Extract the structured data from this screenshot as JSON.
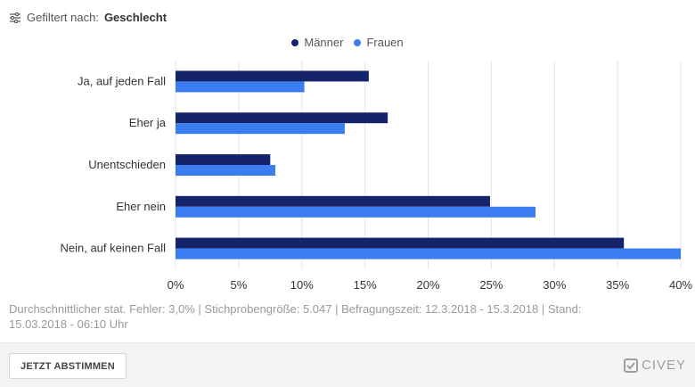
{
  "filter": {
    "prefix": "Gefiltert nach:",
    "value": "Geschlecht",
    "icon": "filter-sliders-icon"
  },
  "colors": {
    "maenner": "#15236b",
    "frauen": "#3b7cf0",
    "grid": "#e4e4e4",
    "tick_text": "#333333"
  },
  "chart_data": {
    "type": "bar",
    "orientation": "horizontal",
    "categories": [
      "Ja, auf jeden Fall",
      "Eher ja",
      "Unentschieden",
      "Eher nein",
      "Nein, auf keinen Fall"
    ],
    "series": [
      {
        "name": "Männer",
        "values": [
          15.3,
          16.8,
          7.5,
          24.9,
          35.5
        ]
      },
      {
        "name": "Frauen",
        "values": [
          10.2,
          13.4,
          7.9,
          28.5,
          40.0
        ]
      }
    ],
    "xlim": [
      0,
      40
    ],
    "xticks": [
      "0%",
      "5%",
      "10%",
      "15%",
      "20%",
      "25%",
      "30%",
      "35%",
      "40%"
    ],
    "xtick_values": [
      0,
      5,
      10,
      15,
      20,
      25,
      30,
      35,
      40
    ],
    "grid": true,
    "legend_position": "top-center"
  },
  "footnote": "Durchschnittlicher stat. Fehler: 3,0% | Stichprobengröße: 5.047 | Befragungszeit: 12.3.2018 - 15.3.2018 | Stand: 15.03.2018 - 06:10 Uhr",
  "footer": {
    "vote_button_label": "JETZT ABSTIMMEN",
    "brand": "CIVEY",
    "brand_icon": "civey-logo-icon"
  }
}
